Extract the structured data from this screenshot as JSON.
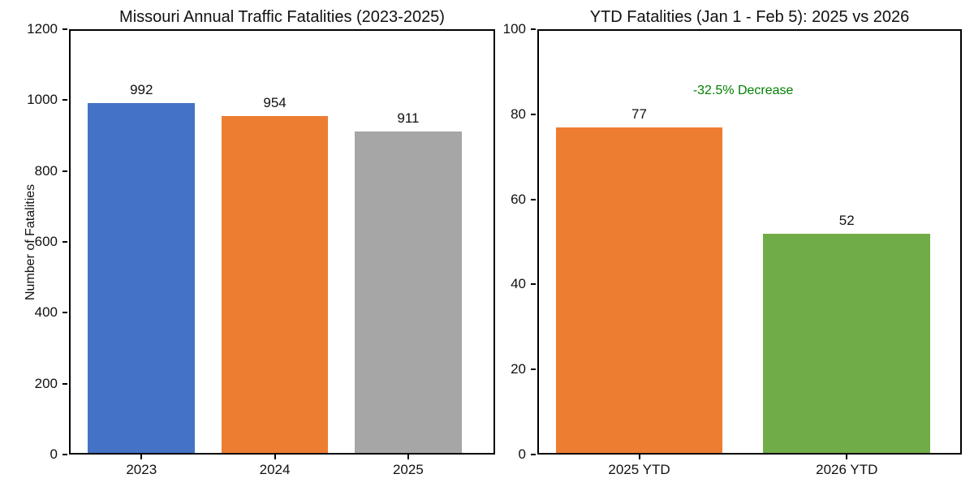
{
  "figure": {
    "background": "#ffffff",
    "text_color": "#111111",
    "axis_color": "#000000"
  },
  "chart_data": [
    {
      "type": "bar",
      "title": "Missouri Annual Traffic Fatalities (2023-2025)",
      "xlabel": "",
      "ylabel": "Number of Fatalities",
      "categories": [
        "2023",
        "2024",
        "2025"
      ],
      "values": [
        992,
        954,
        911
      ],
      "bar_labels": [
        "992",
        "954",
        "911"
      ],
      "bar_colors": [
        "#4472C4",
        "#ED7D31",
        "#A6A6A6"
      ],
      "ylim": [
        0,
        1200
      ],
      "yticks": [
        0,
        200,
        400,
        600,
        800,
        1000,
        1200
      ],
      "grid": false,
      "legend": null,
      "annotation": null
    },
    {
      "type": "bar",
      "title": "YTD Fatalities (Jan 1 - Feb 5): 2025 vs 2026",
      "xlabel": "",
      "ylabel": "",
      "categories": [
        "2025 YTD",
        "2026 YTD"
      ],
      "values": [
        77,
        52
      ],
      "bar_labels": [
        "77",
        "52"
      ],
      "bar_colors": [
        "#ED7D31",
        "#70AD47"
      ],
      "ylim": [
        0,
        100
      ],
      "yticks": [
        0,
        20,
        40,
        60,
        80,
        100
      ],
      "grid": false,
      "legend": null,
      "annotation": {
        "text": "-32.5% Decrease",
        "color": "#008000",
        "x_frac": 0.485,
        "y_value": 85.5
      }
    }
  ]
}
